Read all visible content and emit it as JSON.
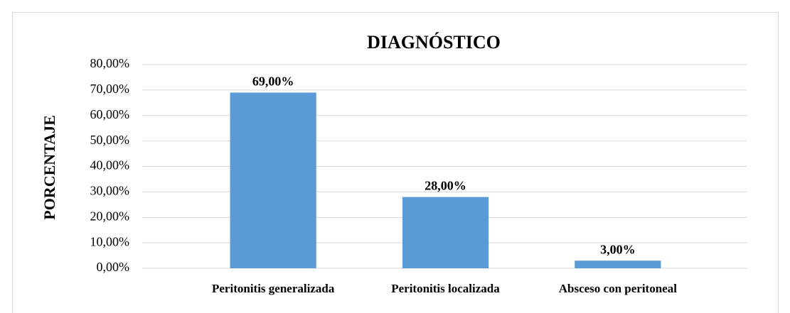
{
  "chart_data": {
    "type": "bar",
    "title": "DIAGNÓSTICO",
    "y_label": "PORCENTAJE",
    "categories": [
      "Peritonitis generalizada",
      "Peritonitis localizada",
      "Absceso con peritoneal"
    ],
    "values": [
      69,
      28,
      3
    ],
    "value_labels": [
      "69,00%",
      "28,00%",
      "3,00%"
    ],
    "color": "#5b9bd5",
    "ylim": [
      0,
      80
    ],
    "yticks": [
      {
        "value": 0,
        "label": "0,00%"
      },
      {
        "value": 10,
        "label": "10,00%"
      },
      {
        "value": 20,
        "label": "20,00%"
      },
      {
        "value": 30,
        "label": "30,00%"
      },
      {
        "value": 40,
        "label": "40,00%"
      },
      {
        "value": 50,
        "label": "50,00%"
      },
      {
        "value": 60,
        "label": "60,00%"
      },
      {
        "value": 70,
        "label": "70,00%"
      },
      {
        "value": 80,
        "label": "80,00%"
      }
    ],
    "grid": true
  }
}
